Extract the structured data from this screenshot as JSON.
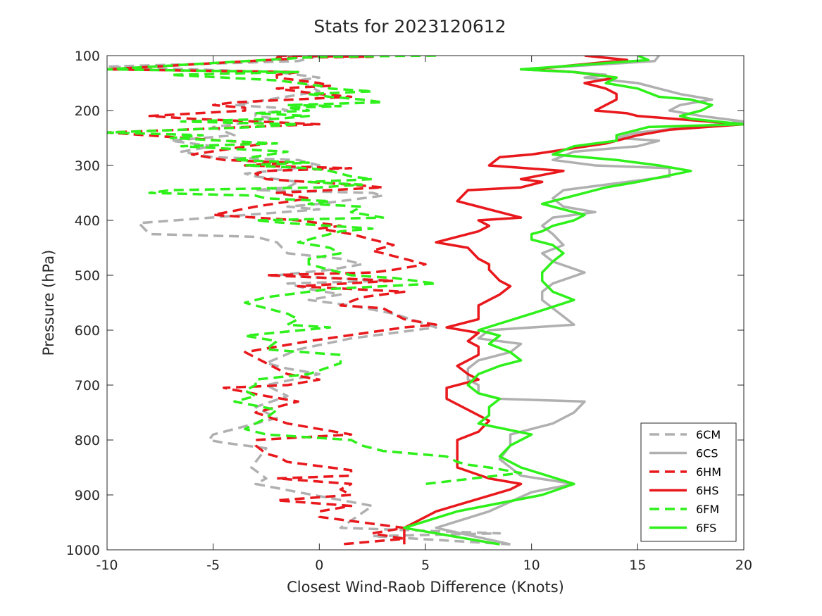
{
  "chart_data": {
    "type": "line",
    "title": "Stats for 2023120612",
    "xlabel": "Closest Wind-Raob Difference (Knots)",
    "ylabel": "Pressure (hPa)",
    "xlim": [
      -10,
      20
    ],
    "ylim": [
      100,
      1000
    ],
    "y_reversed": true,
    "grid": false,
    "legend_position": "bottom-right",
    "xticks": [
      -10,
      -5,
      0,
      5,
      10,
      15,
      20
    ],
    "yticks": [
      100,
      200,
      300,
      400,
      500,
      600,
      700,
      800,
      900,
      1000
    ],
    "series": [
      {
        "name": "6CM",
        "color": "#b0b0b0",
        "dash": true,
        "x": [
          0.0,
          -1.0,
          -10.0,
          -6.0,
          -2.0,
          -1.0,
          0.0,
          -1.0,
          0.0,
          -4.0,
          -2.0,
          -1.5,
          -3.0,
          -3.0,
          -2.0,
          -5.0,
          -4.0,
          -7.0,
          -5.0,
          -6.5,
          -5.0,
          -1.0,
          0.0,
          -3.5,
          -3.0,
          -1.0,
          -1.5,
          -3.0,
          2.5,
          3.0,
          0.0,
          -1.5,
          0.0,
          -8.5,
          -8.0,
          -3.0,
          -2.0,
          -1.5,
          1.0,
          2.0,
          0.5,
          -2.0,
          3.0,
          -1.5,
          -0.5,
          1.0,
          -0.5,
          1.5,
          3.5,
          5.5,
          1.5,
          -1.0,
          -2.5,
          -1.5,
          0.0,
          -2.5,
          -1.5,
          -3.0,
          -2.0,
          -4.0,
          -5.0,
          -5.2,
          -4.5,
          -2.5,
          -3.0,
          -3.2,
          -2.5,
          -3.0,
          -1.0,
          2.5,
          1.0,
          8.5,
          2.5,
          9.0
        ],
        "y": [
          100,
          110,
          120,
          125,
          130,
          135,
          140,
          145,
          165,
          190,
          195,
          200,
          205,
          210,
          215,
          230,
          245,
          255,
          265,
          275,
          285,
          290,
          300,
          315,
          320,
          330,
          340,
          345,
          350,
          355,
          370,
          375,
          380,
          405,
          425,
          430,
          440,
          460,
          470,
          480,
          490,
          500,
          510,
          515,
          525,
          535,
          545,
          555,
          570,
          595,
          615,
          635,
          660,
          670,
          680,
          700,
          720,
          740,
          760,
          780,
          790,
          800,
          805,
          815,
          840,
          850,
          870,
          880,
          895,
          920,
          960,
          970,
          975,
          990
        ]
      },
      {
        "name": "6CS",
        "color": "#b0b0b0",
        "dash": false,
        "x": [
          16.0,
          15.8,
          9.5,
          12.0,
          13.5,
          12.5,
          15.0,
          16.0,
          17.0,
          18.5,
          17.0,
          16.5,
          18.0,
          20.0,
          15.0,
          14.0,
          16.0,
          15.0,
          12.0,
          11.0,
          13.0,
          16.5,
          16.5,
          14.5,
          11.5,
          11.0,
          11.5,
          13.0,
          11.0,
          10.5,
          11.0,
          11.5,
          10.5,
          11.0,
          12.5,
          11.0,
          10.5,
          10.5,
          11.5,
          12.0,
          8.0,
          7.5,
          9.5,
          9.0,
          7.5,
          7.0,
          7.0,
          7.5,
          7.5,
          8.5,
          12.5,
          12.0,
          11.0,
          9.0,
          9.0,
          8.5,
          9.5,
          12.0,
          10.0,
          8.0,
          5.5,
          9.0
        ],
        "y": [
          100,
          110,
          125,
          130,
          135,
          140,
          150,
          160,
          170,
          180,
          190,
          200,
          210,
          220,
          240,
          250,
          255,
          265,
          275,
          290,
          300,
          305,
          320,
          330,
          345,
          360,
          375,
          385,
          395,
          410,
          425,
          445,
          460,
          475,
          495,
          515,
          530,
          545,
          575,
          590,
          600,
          615,
          625,
          640,
          655,
          670,
          690,
          700,
          715,
          725,
          730,
          750,
          770,
          790,
          810,
          835,
          865,
          880,
          895,
          930,
          960,
          990
        ]
      },
      {
        "name": "6HM",
        "color": "#e8181c",
        "dash": true,
        "x": [
          -2.0,
          2.5,
          -2.0,
          -1.5,
          -10.0,
          -1.0,
          -2.0,
          -2.0,
          0.0,
          0.5,
          -2.0,
          0.0,
          1.5,
          -4.0,
          -5.0,
          -3.5,
          -3.5,
          -8.0,
          -6.0,
          0.0,
          -3.5,
          -6.5,
          -10.0,
          -4.5,
          -2.5,
          -6.0,
          -4.5,
          -1.5,
          -3.5,
          1.5,
          -2.5,
          -3.0,
          -2.5,
          1.5,
          3.0,
          -2.0,
          -0.5,
          -3.0,
          -5.0,
          -1.0,
          1.0,
          0.0,
          1.5,
          2.5,
          3.5,
          2.5,
          4.0,
          5.0,
          3.5,
          2.5,
          -2.5,
          3.5,
          -1.0,
          4.0,
          2.0,
          1.0,
          3.0,
          4.0,
          5.5,
          4.0,
          -0.5,
          -3.5,
          -2.5,
          -1.5,
          0.0,
          -1.5,
          -4.5,
          -2.5,
          -1.0,
          -3.0,
          -1.5,
          1.5,
          -3.0,
          -3.0,
          -2.5,
          -2.0,
          -1.5,
          1.5,
          1.5,
          -2.0,
          1.5,
          1.0,
          1.5,
          -2.0,
          1.5,
          0.0,
          0.0,
          2.0,
          4.0,
          2.5,
          4.0,
          1.0
        ],
        "y": [
          100,
          102,
          104,
          106,
          125,
          130,
          135,
          140,
          150,
          155,
          160,
          170,
          175,
          185,
          190,
          195,
          200,
          210,
          215,
          225,
          230,
          235,
          240,
          255,
          260,
          280,
          290,
          295,
          300,
          305,
          310,
          315,
          325,
          335,
          340,
          350,
          360,
          375,
          390,
          400,
          410,
          415,
          425,
          435,
          445,
          455,
          470,
          480,
          490,
          495,
          500,
          510,
          520,
          530,
          540,
          555,
          560,
          580,
          590,
          595,
          620,
          640,
          660,
          680,
          690,
          700,
          705,
          720,
          730,
          750,
          770,
          790,
          800,
          810,
          825,
          830,
          840,
          855,
          865,
          870,
          880,
          890,
          900,
          910,
          920,
          930,
          940,
          950,
          960,
          970,
          980,
          990
        ]
      },
      {
        "name": "6HS",
        "color": "#e8181c",
        "dash": false,
        "x": [
          12.5,
          14.5,
          10.0,
          12.0,
          14.0,
          12.5,
          13.5,
          14.0,
          14.0,
          13.5,
          13.0,
          14.5,
          15.0,
          20.0,
          16.5,
          15.0,
          13.5,
          10.0,
          8.5,
          8.0,
          11.5,
          9.5,
          10.5,
          9.5,
          7.0,
          6.5,
          7.5,
          8.5,
          9.5,
          7.5,
          8.0,
          7.5,
          5.5,
          7.0,
          7.5,
          8.0,
          8.0,
          8.5,
          9.0,
          8.5,
          8.0,
          7.5,
          7.5,
          6.0,
          7.5,
          7.0,
          7.5,
          7.5,
          7.0,
          6.5,
          7.0,
          7.5,
          6.0,
          6.0,
          7.0,
          8.0,
          7.5,
          6.5,
          6.5,
          6.5,
          8.0,
          9.5,
          9.0,
          5.5,
          4.0,
          4.0
        ],
        "y": [
          100,
          108,
          125,
          130,
          140,
          150,
          160,
          170,
          180,
          190,
          200,
          205,
          210,
          225,
          235,
          245,
          260,
          280,
          285,
          300,
          310,
          325,
          330,
          340,
          345,
          365,
          375,
          385,
          395,
          400,
          410,
          420,
          440,
          450,
          470,
          480,
          490,
          510,
          520,
          535,
          545,
          555,
          580,
          595,
          605,
          620,
          630,
          645,
          655,
          665,
          680,
          690,
          705,
          725,
          745,
          765,
          785,
          800,
          815,
          850,
          870,
          880,
          890,
          930,
          960,
          990
        ]
      },
      {
        "name": "6FM",
        "color": "#2ef01a",
        "dash": true,
        "x": [
          5.5,
          0.0,
          -10.0,
          -1.0,
          -7.0,
          -2.0,
          -1.0,
          0.0,
          0.5,
          2.5,
          -0.5,
          0.5,
          2.0,
          3.0,
          -1.5,
          1.0,
          -1.5,
          -0.5,
          -3.0,
          -0.5,
          -2.0,
          -6.5,
          -1.0,
          -3.0,
          -10.0,
          -5.5,
          -7.0,
          -2.0,
          -6.5,
          -1.5,
          -4.0,
          -0.5,
          -3.5,
          -0.5,
          0.5,
          1.5,
          2.5,
          -0.5,
          2.0,
          0.0,
          -7.0,
          -8.0,
          -3.0,
          -2.5,
          0.5,
          -0.5,
          2.0,
          1.5,
          3.0,
          -3.0,
          -1.5,
          2.5,
          1.0,
          0.0,
          -1.0,
          0.5,
          1.0,
          -0.5,
          -0.5,
          0.5,
          1.5,
          3.5,
          5.5,
          0.5,
          -2.5,
          -3.5,
          -2.5,
          -1.5,
          -1.0,
          -1.5,
          0.5,
          -3.5,
          -2.0,
          -2.5,
          1.0,
          1.0,
          -0.5,
          -3.0,
          -3.0,
          -3.5,
          -3.0,
          -4.0,
          -2.0,
          -2.5,
          -3.0,
          -3.5,
          -2.5,
          1.5,
          2.0,
          2.5,
          3.0,
          4.5,
          6.0,
          6.5,
          7.0,
          8.0,
          9.5,
          5.0
        ],
        "y": [
          100,
          102,
          125,
          130,
          135,
          145,
          150,
          155,
          160,
          165,
          170,
          175,
          180,
          185,
          190,
          192,
          195,
          200,
          205,
          210,
          215,
          220,
          225,
          230,
          240,
          245,
          250,
          260,
          265,
          275,
          290,
          295,
          300,
          305,
          310,
          320,
          325,
          330,
          335,
          340,
          345,
          350,
          355,
          360,
          365,
          370,
          375,
          385,
          395,
          400,
          405,
          415,
          420,
          430,
          440,
          450,
          460,
          470,
          480,
          490,
          500,
          505,
          515,
          525,
          540,
          550,
          560,
          570,
          580,
          590,
          595,
          610,
          620,
          635,
          645,
          660,
          680,
          690,
          700,
          710,
          720,
          730,
          745,
          760,
          770,
          780,
          790,
          800,
          810,
          815,
          820,
          825,
          830,
          840,
          845,
          850,
          860,
          880
        ]
      },
      {
        "name": "6FS",
        "color": "#2ef01a",
        "dash": false,
        "x": [
          15.0,
          15.5,
          9.5,
          12.0,
          14.0,
          13.5,
          15.0,
          16.0,
          17.5,
          18.5,
          18.0,
          17.0,
          17.5,
          20.0,
          15.5,
          14.0,
          14.0,
          12.0,
          11.0,
          14.0,
          16.0,
          17.5,
          15.0,
          13.5,
          12.0,
          10.5,
          11.5,
          12.5,
          12.0,
          11.0,
          10.5,
          10.0,
          10.0,
          11.0,
          11.5,
          11.0,
          10.5,
          10.5,
          11.0,
          12.0,
          10.0,
          7.5,
          8.5,
          8.0,
          9.0,
          9.5,
          8.5,
          7.5,
          7.0,
          7.5,
          8.5,
          8.0,
          8.0,
          7.5,
          10.0,
          9.0,
          8.5,
          9.5,
          12.0,
          10.5,
          6.5,
          4.0,
          8.5
        ],
        "y": [
          100,
          108,
          125,
          130,
          140,
          150,
          160,
          175,
          180,
          190,
          200,
          210,
          215,
          225,
          230,
          245,
          255,
          265,
          280,
          290,
          300,
          310,
          330,
          340,
          355,
          370,
          380,
          390,
          400,
          410,
          420,
          425,
          435,
          445,
          460,
          475,
          495,
          510,
          530,
          545,
          570,
          600,
          610,
          625,
          640,
          655,
          665,
          680,
          700,
          715,
          725,
          740,
          755,
          770,
          790,
          810,
          830,
          850,
          880,
          900,
          930,
          960,
          990
        ]
      }
    ]
  }
}
